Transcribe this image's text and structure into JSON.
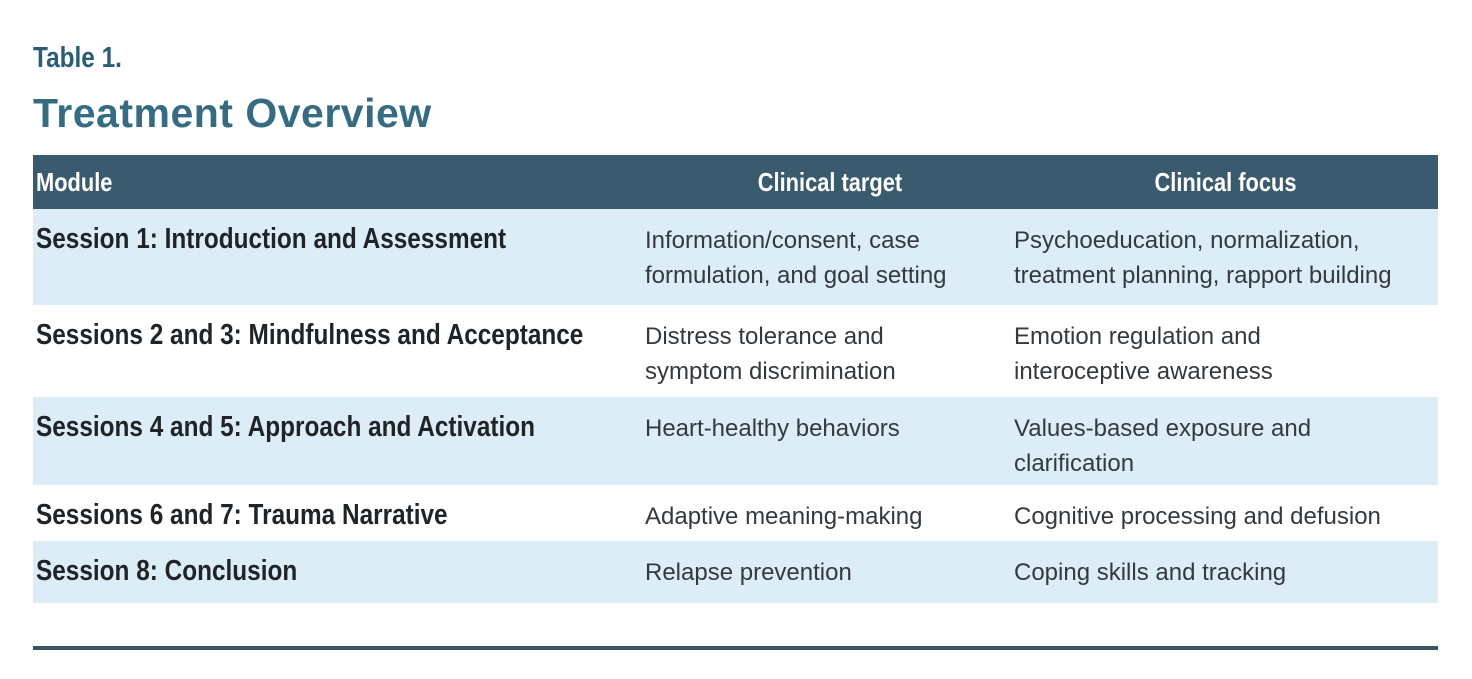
{
  "table": {
    "label": "Table 1.",
    "title": "Treatment Overview",
    "columns": [
      "Module",
      "Clinical target",
      "Clinical focus"
    ],
    "rows": [
      {
        "module": "Session 1: Introduction and Assessment",
        "target": "Information/consent, case\nformulation, and goal setting",
        "focus": "Psychoeducation, normalization,\ntreatment planning, rapport building"
      },
      {
        "module": "Sessions 2 and 3: Mindfulness and Acceptance",
        "target": "Distress tolerance and\nsymptom discrimination",
        "focus": "Emotion regulation and\ninteroceptive awareness"
      },
      {
        "module": "Sessions 4 and 5: Approach and Activation",
        "target": "Heart-healthy behaviors",
        "focus": "Values-based exposure and\nclarification"
      },
      {
        "module": "Sessions 6 and 7: Trauma Narrative",
        "target": "Adaptive meaning-making",
        "focus": "Cognitive processing and defusion"
      },
      {
        "module": "Session 8: Conclusion",
        "target": "Relapse prevention",
        "focus": "Coping skills and tracking"
      }
    ]
  },
  "colors": {
    "header_bg": "#3a5a6e",
    "row_alt_bg": "#ddedf7",
    "title_teal": "#366b82",
    "label_teal": "#2c5d76",
    "rule": "#3a5565",
    "body_text": "#33393f",
    "module_text": "#1f2428"
  }
}
